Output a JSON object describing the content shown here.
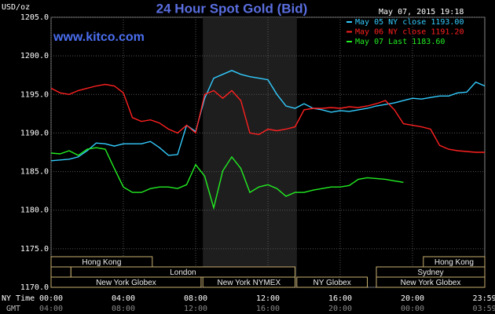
{
  "chart_data": {
    "type": "line",
    "title": "24 Hour Spot Gold (Bid)",
    "subtitle": "www.kitco.com",
    "y_label": "USD/oz",
    "timestamp": "May 07, 2015 19:18",
    "x_label": "NY Time",
    "x2_label": "GMT",
    "xlim": [
      0,
      24
    ],
    "xticks": [
      {
        "value": 0,
        "label": "00:00"
      },
      {
        "value": 4,
        "label": "04:00"
      },
      {
        "value": 8,
        "label": "08:00"
      },
      {
        "value": 12,
        "label": "12:00"
      },
      {
        "value": 16,
        "label": "16:00"
      },
      {
        "value": 20,
        "label": "20:00"
      },
      {
        "value": 23.983,
        "label": "23:59"
      }
    ],
    "x2ticks": [
      {
        "value": 0,
        "label": "04:00"
      },
      {
        "value": 4,
        "label": "08:00"
      },
      {
        "value": 8,
        "label": "12:00"
      },
      {
        "value": 12,
        "label": "16:00"
      },
      {
        "value": 16,
        "label": "20:00"
      },
      {
        "value": 20,
        "label": "00:00"
      },
      {
        "value": 23.983,
        "label": "03:59"
      }
    ],
    "ylim": [
      1170,
      1205
    ],
    "yticks": [
      {
        "value": 1170,
        "label": "1170.0"
      },
      {
        "value": 1175,
        "label": "1175.0"
      },
      {
        "value": 1180,
        "label": "1180.0"
      },
      {
        "value": 1185,
        "label": "1185.0"
      },
      {
        "value": 1190,
        "label": "1190.0"
      },
      {
        "value": 1195,
        "label": "1195.0"
      },
      {
        "value": 1200,
        "label": "1200.0"
      },
      {
        "value": 1205,
        "label": "1205.0"
      }
    ],
    "grid": true,
    "legend": "top-right",
    "highlight": [
      8.4,
      13.6
    ],
    "sessions": [
      {
        "label": "Hong Kong",
        "start": 0,
        "end": 5.6,
        "row": 0
      },
      {
        "label": "Hong Kong",
        "start": 20.6,
        "end": 24,
        "row": 0
      },
      {
        "start": 0,
        "end": 1.1,
        "row": 1
      },
      {
        "label": "London",
        "start": 1.1,
        "end": 13.5,
        "row": 1
      },
      {
        "label": "Sydney",
        "start": 18,
        "end": 24,
        "row": 1
      },
      {
        "label": "New York Globex",
        "start": 0,
        "end": 8.3,
        "row": 2
      },
      {
        "label": "New York NYMEX",
        "start": 8.4,
        "end": 13.5,
        "row": 2
      },
      {
        "label": "NY Globex",
        "start": 13.6,
        "end": 17.5,
        "row": 2
      },
      {
        "label": "New York Globex",
        "start": 18,
        "end": 24,
        "row": 2
      }
    ],
    "x": [
      0,
      0.5,
      1,
      1.5,
      2,
      2.5,
      3,
      3.5,
      4,
      4.5,
      5,
      5.5,
      6,
      6.5,
      7,
      7.5,
      8,
      8.5,
      9,
      9.5,
      10,
      10.5,
      11,
      11.5,
      12,
      12.5,
      13,
      13.5,
      14,
      14.5,
      15,
      15.5,
      16,
      16.5,
      17,
      17.5,
      18,
      18.5,
      19,
      19.5,
      20,
      20.5,
      21,
      21.5,
      22,
      22.5,
      23,
      23.5,
      24
    ],
    "series": [
      {
        "name": "May 05 NY close 1193.00",
        "color": "#33ccff",
        "values": [
          1186.4,
          1186.5,
          1186.6,
          1186.9,
          1187.7,
          1188.7,
          1188.6,
          1188.3,
          1188.6,
          1188.6,
          1188.6,
          1188.9,
          1188.1,
          1187.1,
          1187.2,
          1191.0,
          1190.2,
          1194.5,
          1197.1,
          1197.6,
          1198.1,
          1197.6,
          1197.3,
          1197.1,
          1196.9,
          1195.0,
          1193.5,
          1193.2,
          1193.8,
          1193.2,
          1193.0,
          1192.7,
          1192.9,
          1192.8,
          1193.0,
          1193.2,
          1193.5,
          1193.7,
          1193.9,
          1194.2,
          1194.5,
          1194.4,
          1194.6,
          1194.8,
          1194.8,
          1195.2,
          1195.3,
          1196.6,
          1196.1
        ]
      },
      {
        "name": "May 06 NY close 1191.20",
        "color": "#ff2020",
        "values": [
          1195.8,
          1195.2,
          1195.0,
          1195.5,
          1195.8,
          1196.1,
          1196.3,
          1196.1,
          1195.2,
          1192.0,
          1191.5,
          1191.7,
          1191.3,
          1190.5,
          1190.0,
          1191.0,
          1190.0,
          1195.0,
          1195.5,
          1194.5,
          1195.5,
          1194.2,
          1190.0,
          1189.8,
          1190.5,
          1190.3,
          1190.5,
          1190.8,
          1193.0,
          1193.2,
          1193.2,
          1193.3,
          1193.2,
          1193.4,
          1193.3,
          1193.5,
          1193.8,
          1194.2,
          1193.0,
          1191.2,
          1191.0,
          1190.8,
          1190.5,
          1188.4,
          1187.9,
          1187.7,
          1187.6,
          1187.5,
          1187.5
        ]
      },
      {
        "name": "May 07 Last 1183.60",
        "color": "#22ee22",
        "values": [
          1187.4,
          1187.3,
          1187.7,
          1187.1,
          1187.9,
          1188.1,
          1187.9,
          1185.4,
          1183.0,
          1182.3,
          1182.3,
          1182.8,
          1183.0,
          1183.0,
          1182.8,
          1183.3,
          1185.9,
          1184.4,
          1180.3,
          1185.1,
          1186.9,
          1185.4,
          1182.3,
          1183.0,
          1183.3,
          1182.8,
          1181.8,
          1182.3,
          1182.3,
          1182.6,
          1182.8,
          1183.0,
          1183.0,
          1183.2,
          1184.0,
          1184.2,
          1184.1,
          1184.0,
          1183.8,
          1183.6,
          null,
          null,
          null,
          null,
          null,
          null,
          null,
          null,
          null
        ]
      }
    ]
  }
}
